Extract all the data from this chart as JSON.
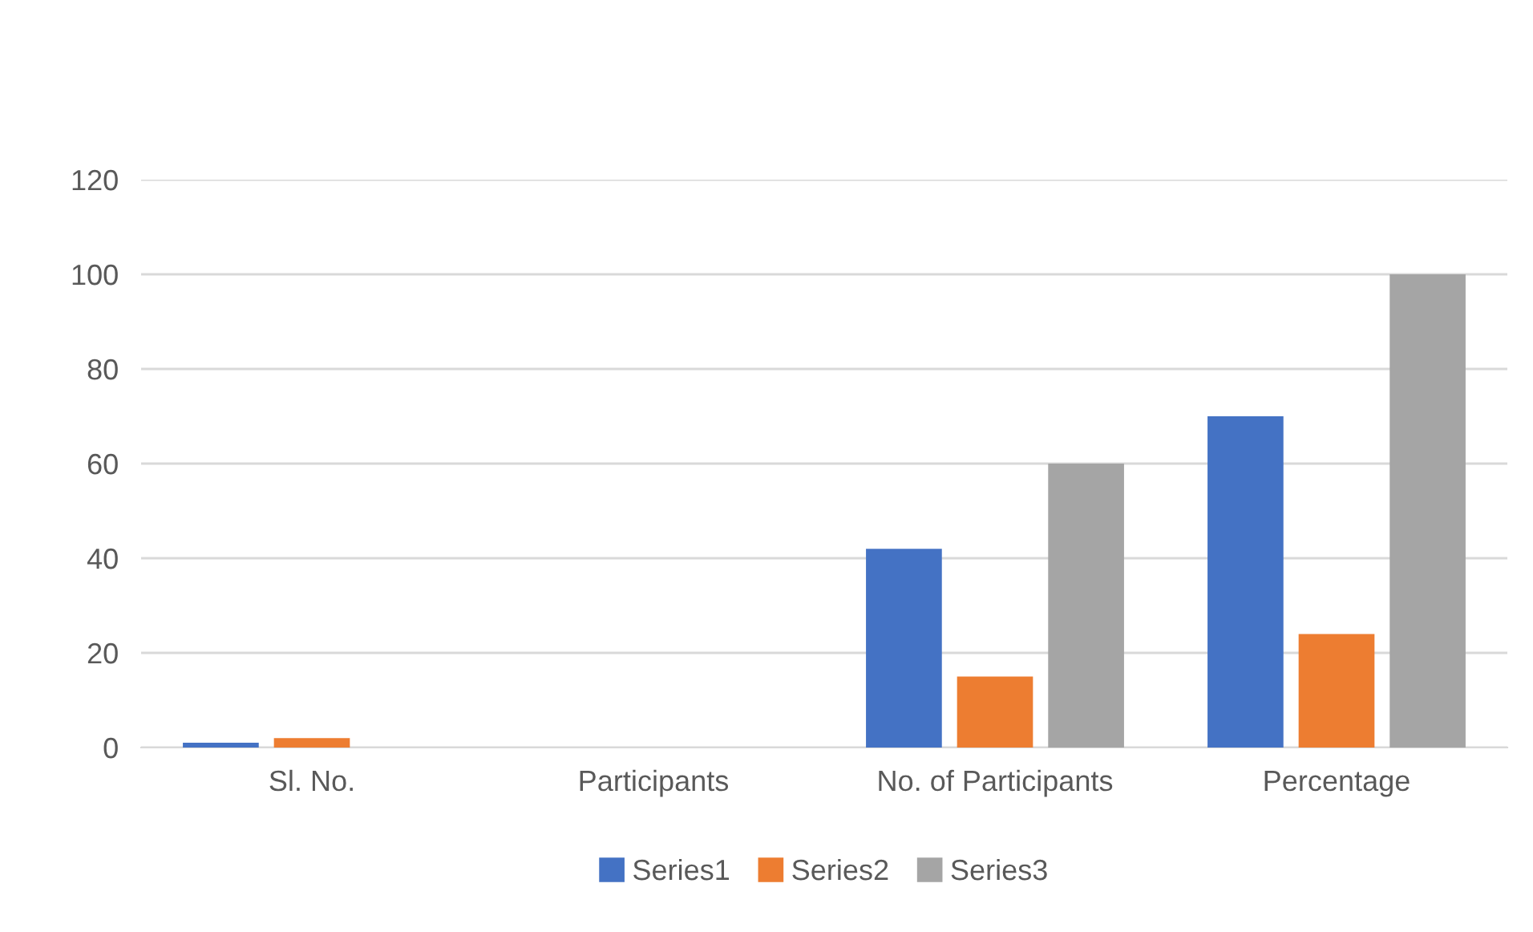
{
  "chart_data": {
    "type": "bar",
    "categories": [
      "Sl. No.",
      "Participants",
      "No. of Participants",
      "Percentage"
    ],
    "series": [
      {
        "name": "Series1",
        "color": "#4472c4",
        "values": [
          1,
          null,
          42,
          70
        ]
      },
      {
        "name": "Series2",
        "color": "#ed7d31",
        "values": [
          2,
          null,
          15,
          24
        ]
      },
      {
        "name": "Series3",
        "color": "#a5a5a5",
        "values": [
          null,
          null,
          60,
          100
        ]
      }
    ],
    "ylim": [
      0,
      120
    ],
    "yticks": [
      0,
      20,
      40,
      60,
      80,
      100,
      120
    ],
    "grid": "y",
    "legend": "bottom"
  }
}
